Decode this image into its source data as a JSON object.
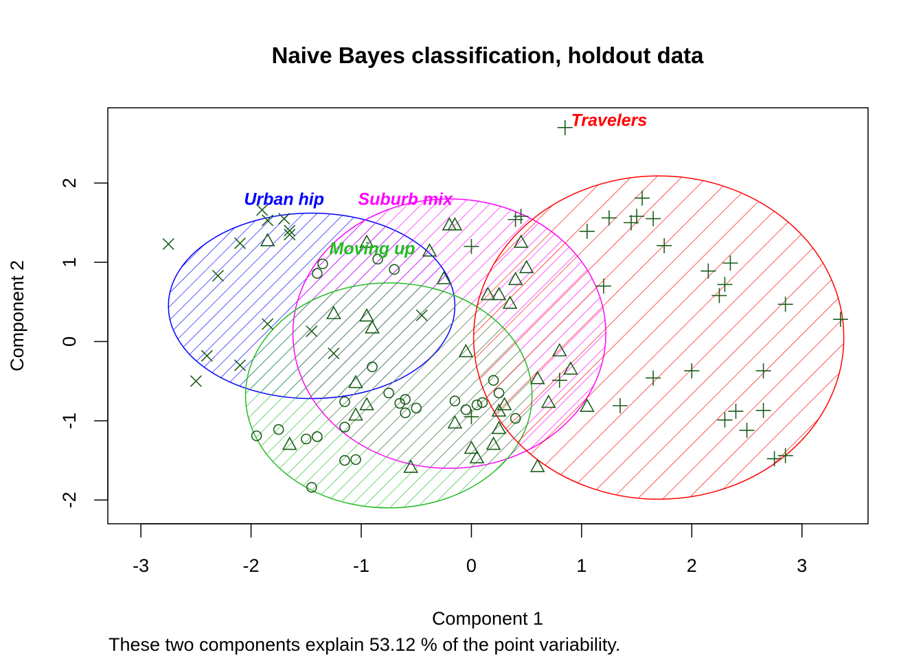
{
  "chart_data": {
    "type": "scatter",
    "title": "Naive Bayes classification, holdout data",
    "xlabel": "Component 1",
    "ylabel": "Component 2",
    "subtitle": "These two components explain 53.12 % of the point variability.",
    "xlim": [
      -3.3,
      3.6
    ],
    "ylim": [
      -2.3,
      2.95
    ],
    "xticks": [
      -3,
      -2,
      -1,
      0,
      1,
      2,
      3
    ],
    "yticks": [
      -2,
      -1,
      0,
      1,
      2
    ],
    "grid": false,
    "point_color": "#1a5c1a",
    "clusters": [
      {
        "name": "Urban hip",
        "color": "#0000ff",
        "ellipse": {
          "cx": -1.45,
          "cy": 0.45,
          "rx": 1.3,
          "ry": 1.17
        },
        "label_at": [
          -1.7,
          1.8
        ],
        "marker": "x",
        "points": [
          [
            -2.75,
            1.23
          ],
          [
            -2.3,
            0.83
          ],
          [
            -2.1,
            1.24
          ],
          [
            -1.9,
            1.66
          ],
          [
            -1.85,
            1.53
          ],
          [
            -1.7,
            1.55
          ],
          [
            -1.65,
            1.4
          ],
          [
            -1.65,
            1.35
          ],
          [
            -1.85,
            0.22
          ],
          [
            -2.4,
            -0.18
          ],
          [
            -2.5,
            -0.5
          ],
          [
            -2.1,
            -0.3
          ],
          [
            -1.45,
            0.13
          ],
          [
            -1.25,
            -0.15
          ],
          [
            -0.45,
            0.33
          ]
        ]
      },
      {
        "name": "Suburb mix",
        "color": "#ff00ff",
        "ellipse": {
          "cx": -0.2,
          "cy": 0.1,
          "rx": 1.42,
          "ry": 1.7
        },
        "label_at": [
          -0.6,
          1.8
        ],
        "marker": "triangle",
        "points": [
          [
            -1.85,
            1.27
          ],
          [
            -0.2,
            1.47
          ],
          [
            -0.15,
            1.47
          ],
          [
            -0.38,
            1.14
          ],
          [
            -0.25,
            0.79
          ],
          [
            0.45,
            1.25
          ],
          [
            0.5,
            0.93
          ],
          [
            0.4,
            0.78
          ],
          [
            0.25,
            0.59
          ],
          [
            0.15,
            0.59
          ],
          [
            0.35,
            0.48
          ],
          [
            -1.25,
            0.35
          ],
          [
            -0.95,
            0.32
          ],
          [
            -0.9,
            0.17
          ],
          [
            -0.05,
            -0.13
          ],
          [
            -1.05,
            -0.52
          ],
          [
            -1.05,
            -0.93
          ],
          [
            -0.95,
            -0.8
          ],
          [
            -1.65,
            -1.3
          ],
          [
            -0.55,
            -1.59
          ],
          [
            -0.15,
            -1.03
          ],
          [
            0.0,
            -1.35
          ],
          [
            0.05,
            -1.47
          ],
          [
            0.25,
            -0.88
          ],
          [
            0.3,
            -0.8
          ],
          [
            0.25,
            -1.1
          ],
          [
            0.2,
            -1.3
          ],
          [
            0.6,
            -0.47
          ],
          [
            0.7,
            -0.77
          ],
          [
            0.8,
            -0.12
          ],
          [
            0.9,
            -0.35
          ],
          [
            1.05,
            -0.82
          ],
          [
            0.6,
            -1.58
          ],
          [
            -0.95,
            1.25
          ]
        ]
      },
      {
        "name": "Moving up",
        "color": "#22bb22",
        "ellipse": {
          "cx": -0.75,
          "cy": -0.68,
          "rx": 1.3,
          "ry": 1.42
        },
        "label_at": [
          -0.9,
          1.18
        ],
        "marker": "circle",
        "points": [
          [
            -1.35,
            0.98
          ],
          [
            -1.4,
            0.86
          ],
          [
            -0.85,
            1.04
          ],
          [
            -0.7,
            0.91
          ],
          [
            -0.9,
            -0.32
          ],
          [
            -1.15,
            -0.76
          ],
          [
            -0.75,
            -0.65
          ],
          [
            -0.65,
            -0.78
          ],
          [
            -0.6,
            -0.73
          ],
          [
            -0.6,
            -0.9
          ],
          [
            -0.5,
            -0.84
          ],
          [
            -1.95,
            -1.19
          ],
          [
            -1.75,
            -1.11
          ],
          [
            -1.5,
            -1.23
          ],
          [
            -1.4,
            -1.2
          ],
          [
            -1.15,
            -1.08
          ],
          [
            -1.15,
            -1.5
          ],
          [
            -1.05,
            -1.49
          ],
          [
            -1.45,
            -1.84
          ],
          [
            -0.15,
            -0.75
          ],
          [
            -0.05,
            -0.86
          ],
          [
            0.05,
            -0.8
          ],
          [
            0.1,
            -0.77
          ],
          [
            0.2,
            -0.49
          ],
          [
            0.25,
            -0.65
          ],
          [
            0.4,
            -0.97
          ]
        ]
      },
      {
        "name": "Travelers",
        "color": "#ff0000",
        "ellipse": {
          "cx": 1.7,
          "cy": 0.05,
          "rx": 1.68,
          "ry": 2.04
        },
        "label_at": [
          1.25,
          2.8
        ],
        "marker": "plus",
        "points": [
          [
            0.85,
            2.7
          ],
          [
            0.0,
            1.2
          ],
          [
            0.4,
            1.54
          ],
          [
            0.45,
            1.58
          ],
          [
            1.05,
            1.39
          ],
          [
            1.25,
            1.56
          ],
          [
            1.45,
            1.5
          ],
          [
            1.5,
            1.58
          ],
          [
            1.55,
            1.81
          ],
          [
            1.65,
            1.55
          ],
          [
            1.75,
            1.21
          ],
          [
            1.2,
            0.7
          ],
          [
            2.15,
            0.89
          ],
          [
            2.35,
            0.99
          ],
          [
            2.3,
            0.72
          ],
          [
            2.25,
            0.58
          ],
          [
            2.85,
            0.47
          ],
          [
            3.35,
            0.28
          ],
          [
            0.8,
            -0.49
          ],
          [
            1.35,
            -0.81
          ],
          [
            1.65,
            -0.46
          ],
          [
            2.0,
            -0.37
          ],
          [
            2.65,
            -0.37
          ],
          [
            2.3,
            -0.99
          ],
          [
            2.4,
            -0.88
          ],
          [
            2.5,
            -1.12
          ],
          [
            2.65,
            -0.87
          ],
          [
            2.75,
            -1.48
          ],
          [
            2.85,
            -1.44
          ],
          [
            0.0,
            -0.95
          ]
        ]
      }
    ]
  }
}
